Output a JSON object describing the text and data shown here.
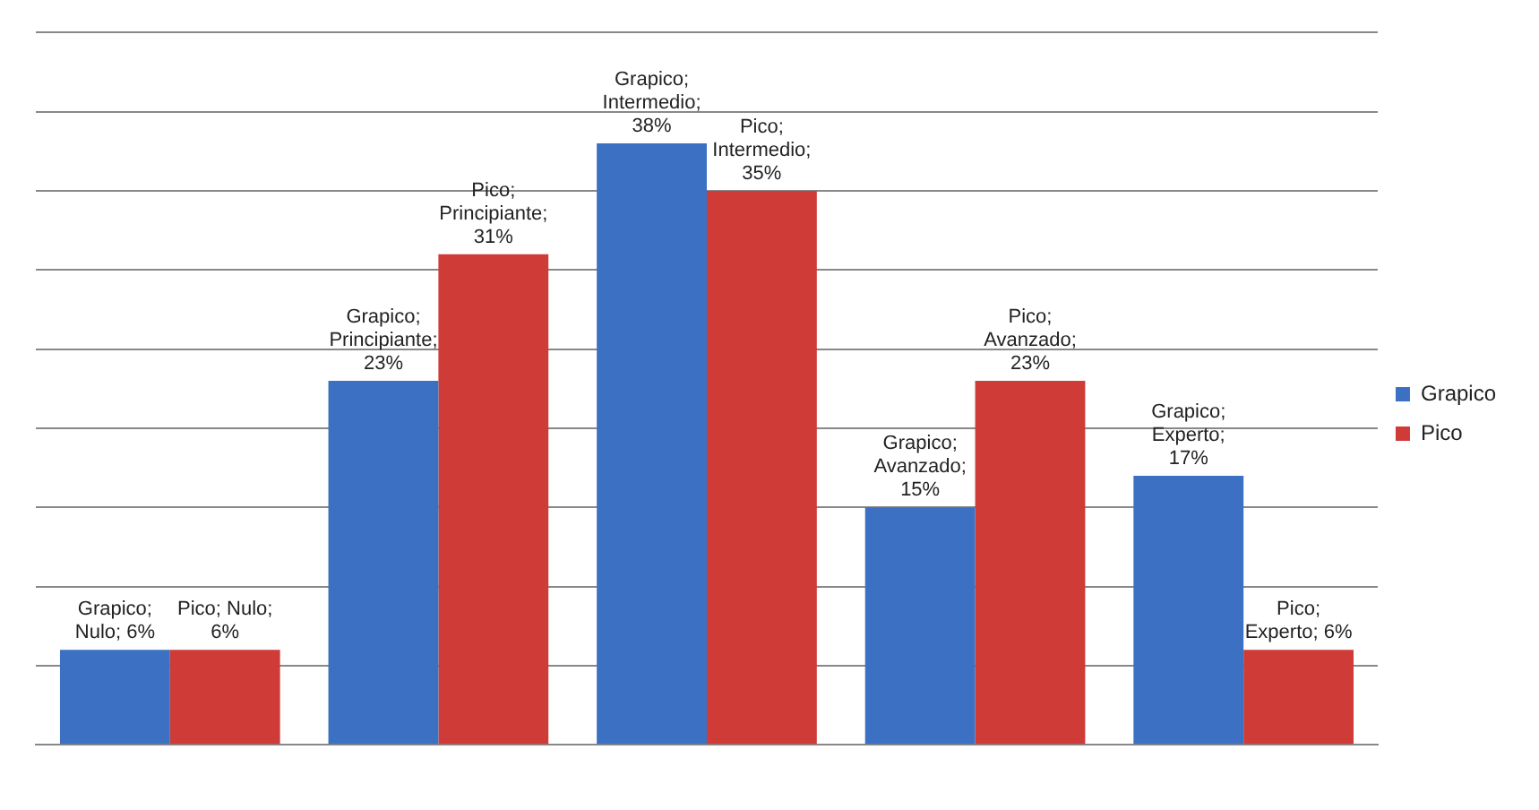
{
  "chart_data": {
    "type": "bar",
    "categories": [
      null,
      null,
      null,
      null,
      null
    ],
    "series": [
      {
        "name": "Grapico",
        "color": "#3b70c2",
        "values": [
          6,
          23,
          38,
          15,
          17
        ],
        "value_labels": [
          "Grapico; Nulo; 6%",
          "Grapico; Principiante; 23%",
          "Grapico; Intermedio; 38%",
          "Grapico; Avanzado; 15%",
          "Grapico; Experto; 17%"
        ]
      },
      {
        "name": "Pico",
        "color": "#cf3b37",
        "values": [
          6,
          31,
          35,
          23,
          6
        ],
        "value_labels": [
          "Pico; Nulo; 6%",
          "Pico; Principiante; 31%",
          "Pico; Intermedio; 35%",
          "Pico; Avanzado; 23%",
          "Pico; Experto; 6%"
        ]
      }
    ],
    "ylim": [
      0,
      45
    ],
    "yticks": [
      {
        "value": 0,
        "label": null
      },
      {
        "value": 5,
        "label": null
      },
      {
        "value": 10,
        "label": null
      },
      {
        "value": 15,
        "label": null
      },
      {
        "value": 20,
        "label": null
      },
      {
        "value": 25,
        "label": null
      },
      {
        "value": 30,
        "label": null
      },
      {
        "value": 35,
        "label": null
      },
      {
        "value": 40,
        "label": null
      },
      {
        "value": 45,
        "label": null
      }
    ],
    "grid": "y",
    "legend": "right"
  }
}
